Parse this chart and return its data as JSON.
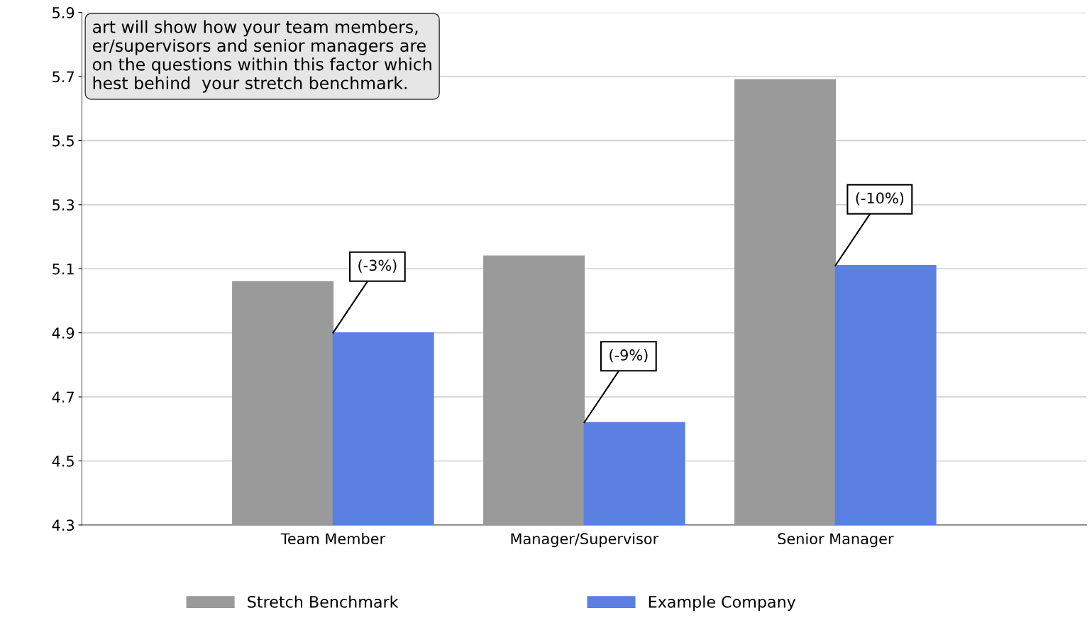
{
  "chart_data": {
    "type": "bar",
    "categories": [
      "Team Member",
      "Manager/Supervisor",
      "Senior Manager"
    ],
    "series": [
      {
        "name": "Stretch Benchmark",
        "color": "#9a9a9a",
        "values": [
          5.06,
          5.14,
          5.69
        ]
      },
      {
        "name": "Example Company",
        "color": "#5b80e2",
        "values": [
          4.9,
          4.62,
          5.11
        ]
      }
    ],
    "ylim": [
      4.3,
      5.9
    ],
    "yticks": [
      4.3,
      4.5,
      4.7,
      4.9,
      5.1,
      5.3,
      5.5,
      5.7,
      5.9
    ],
    "grid": "y",
    "legend": "bottom",
    "annotations": [
      "art will show how your team members,\ner/supervisors and senior managers are\non the questions within this factor which\nhest behind  your stretch benchmark.",
      {
        "text": "(-3%)",
        "x": "Team Member",
        "y": 4.9
      },
      {
        "text": "(-9%)",
        "x": "Manager/Supervisor",
        "y": 4.62
      },
      {
        "text": "(-10%)",
        "x": "Senior Manager",
        "y": 5.11
      }
    ]
  }
}
